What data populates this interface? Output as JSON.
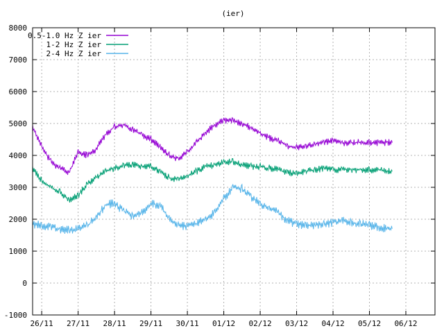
{
  "chart_data": {
    "type": "line",
    "title": "(ier)",
    "xlabel": "",
    "ylabel": "",
    "x_axis_kind": "date",
    "x_range": [
      "2015-11-25T18:00",
      "2015-12-06T19:12"
    ],
    "xticks": [
      {
        "date": "2015-11-26",
        "label": "26/11"
      },
      {
        "date": "2015-11-27",
        "label": "27/11"
      },
      {
        "date": "2015-11-28",
        "label": "28/11"
      },
      {
        "date": "2015-11-29",
        "label": "29/11"
      },
      {
        "date": "2015-11-30",
        "label": "30/11"
      },
      {
        "date": "2015-12-01",
        "label": "01/12"
      },
      {
        "date": "2015-12-02",
        "label": "02/12"
      },
      {
        "date": "2015-12-03",
        "label": "03/12"
      },
      {
        "date": "2015-12-04",
        "label": "04/12"
      },
      {
        "date": "2015-12-05",
        "label": "05/12"
      },
      {
        "date": "2015-12-06",
        "label": "06/12"
      }
    ],
    "ylim": [
      -1000,
      8000
    ],
    "yticks": [
      -1000,
      0,
      1000,
      2000,
      3000,
      4000,
      5000,
      6000,
      7000,
      8000
    ],
    "grid": true,
    "legend_position": "top-left",
    "series": [
      {
        "name": "0.5-1.0 Hz Z ier",
        "color": "#9400d3",
        "x": [
          "2015-11-25T18:00",
          "2015-11-26T00:00",
          "2015-11-26T06:00",
          "2015-11-26T12:00",
          "2015-11-26T18:00",
          "2015-11-27T00:00",
          "2015-11-27T06:00",
          "2015-11-27T12:00",
          "2015-11-27T18:00",
          "2015-11-28T00:00",
          "2015-11-28T06:00",
          "2015-11-28T12:00",
          "2015-11-28T18:00",
          "2015-11-29T00:00",
          "2015-11-29T06:00",
          "2015-11-29T12:00",
          "2015-11-29T18:00",
          "2015-11-30T00:00",
          "2015-11-30T06:00",
          "2015-11-30T12:00",
          "2015-11-30T18:00",
          "2015-12-01T00:00",
          "2015-12-01T06:00",
          "2015-12-01T12:00",
          "2015-12-01T18:00",
          "2015-12-02T00:00",
          "2015-12-02T06:00",
          "2015-12-02T12:00",
          "2015-12-02T18:00",
          "2015-12-03T00:00",
          "2015-12-03T06:00",
          "2015-12-03T12:00",
          "2015-12-03T18:00",
          "2015-12-04T00:00",
          "2015-12-04T06:00",
          "2015-12-04T12:00",
          "2015-12-04T18:00",
          "2015-12-05T00:00",
          "2015-12-05T06:00",
          "2015-12-05T12:00",
          "2015-12-05T15:00"
        ],
        "values": [
          4900,
          4300,
          3800,
          3600,
          3450,
          4100,
          4000,
          4200,
          4650,
          4900,
          4950,
          4800,
          4650,
          4500,
          4250,
          4000,
          3900,
          4100,
          4400,
          4700,
          4950,
          5100,
          5100,
          5000,
          4850,
          4700,
          4550,
          4450,
          4300,
          4250,
          4300,
          4350,
          4400,
          4450,
          4400,
          4400,
          4400,
          4400,
          4400,
          4400,
          4400
        ]
      },
      {
        "name": "1-2 Hz Z ier",
        "color": "#009e73",
        "x": [
          "2015-11-25T18:00",
          "2015-11-26T00:00",
          "2015-11-26T06:00",
          "2015-11-26T12:00",
          "2015-11-26T18:00",
          "2015-11-27T00:00",
          "2015-11-27T06:00",
          "2015-11-27T12:00",
          "2015-11-27T18:00",
          "2015-11-28T00:00",
          "2015-11-28T06:00",
          "2015-11-28T12:00",
          "2015-11-28T18:00",
          "2015-11-29T00:00",
          "2015-11-29T06:00",
          "2015-11-29T12:00",
          "2015-11-29T18:00",
          "2015-11-30T00:00",
          "2015-11-30T06:00",
          "2015-11-30T12:00",
          "2015-11-30T18:00",
          "2015-12-01T00:00",
          "2015-12-01T06:00",
          "2015-12-01T12:00",
          "2015-12-01T18:00",
          "2015-12-02T00:00",
          "2015-12-02T06:00",
          "2015-12-02T12:00",
          "2015-12-02T18:00",
          "2015-12-03T00:00",
          "2015-12-03T06:00",
          "2015-12-03T12:00",
          "2015-12-03T18:00",
          "2015-12-04T00:00",
          "2015-12-04T06:00",
          "2015-12-04T12:00",
          "2015-12-04T18:00",
          "2015-12-05T00:00",
          "2015-12-05T06:00",
          "2015-12-05T12:00",
          "2015-12-05T15:00"
        ],
        "values": [
          3600,
          3200,
          3000,
          2850,
          2600,
          2750,
          3100,
          3300,
          3500,
          3600,
          3700,
          3700,
          3650,
          3650,
          3500,
          3300,
          3250,
          3350,
          3500,
          3650,
          3700,
          3800,
          3800,
          3700,
          3650,
          3650,
          3600,
          3550,
          3450,
          3450,
          3500,
          3550,
          3600,
          3550,
          3550,
          3550,
          3550,
          3550,
          3550,
          3500,
          3500
        ]
      },
      {
        "name": "2-4 Hz Z ier",
        "color": "#56b4e9",
        "x": [
          "2015-11-25T18:00",
          "2015-11-26T00:00",
          "2015-11-26T06:00",
          "2015-11-26T12:00",
          "2015-11-26T18:00",
          "2015-11-27T00:00",
          "2015-11-27T06:00",
          "2015-11-27T12:00",
          "2015-11-27T18:00",
          "2015-11-28T00:00",
          "2015-11-28T06:00",
          "2015-11-28T12:00",
          "2015-11-28T18:00",
          "2015-11-29T00:00",
          "2015-11-29T06:00",
          "2015-11-29T12:00",
          "2015-11-29T18:00",
          "2015-11-30T00:00",
          "2015-11-30T06:00",
          "2015-11-30T12:00",
          "2015-11-30T18:00",
          "2015-12-01T00:00",
          "2015-12-01T06:00",
          "2015-12-01T12:00",
          "2015-12-01T18:00",
          "2015-12-02T00:00",
          "2015-12-02T06:00",
          "2015-12-02T12:00",
          "2015-12-02T18:00",
          "2015-12-03T00:00",
          "2015-12-03T06:00",
          "2015-12-03T12:00",
          "2015-12-03T18:00",
          "2015-12-04T00:00",
          "2015-12-04T06:00",
          "2015-12-04T12:00",
          "2015-12-04T18:00",
          "2015-12-05T00:00",
          "2015-12-05T06:00",
          "2015-12-05T12:00",
          "2015-12-05T15:00"
        ],
        "values": [
          1850,
          1800,
          1750,
          1700,
          1650,
          1700,
          1800,
          2050,
          2450,
          2500,
          2250,
          2100,
          2200,
          2500,
          2450,
          2000,
          1800,
          1800,
          1850,
          2000,
          2200,
          2650,
          3000,
          2950,
          2700,
          2500,
          2350,
          2200,
          1950,
          1850,
          1800,
          1800,
          1850,
          1900,
          1950,
          1900,
          1850,
          1800,
          1750,
          1700,
          1700
        ]
      }
    ]
  }
}
